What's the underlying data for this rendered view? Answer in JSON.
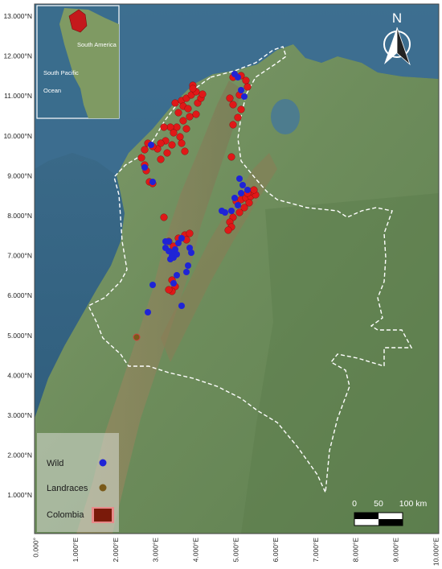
{
  "map": {
    "lat_labels": [
      "13.000°N",
      "12.000°N",
      "11.000°N",
      "10.000°N",
      "9.000°N",
      "8.000°N",
      "7.000°N",
      "6.000°N",
      "5.000°N",
      "4.000°N",
      "3.000°N",
      "2.000°N",
      "1.000°N"
    ],
    "lon_labels": [
      "0.000°",
      "1.000°E",
      "2.000°E",
      "3.000°E",
      "4.000°E",
      "5.000°E",
      "6.000°E",
      "7.000°E",
      "8.000°E",
      "9.000°E",
      "10.000°E"
    ],
    "north_label": "N",
    "inset": {
      "country": "Colombia",
      "label_continent": "South America",
      "label_ocean_line1": "South Pacific",
      "label_ocean_line2": "Ocean"
    },
    "legend": {
      "wild_label": "Wild",
      "landraces_label": "Landraces",
      "colombia_label": "Colombia"
    },
    "scale": {
      "labels": [
        "0",
        "50",
        "100 km"
      ]
    },
    "colors": {
      "wild": "#1f24d6",
      "landraces": "#e01818",
      "landraces_legend": "#7a5a1a",
      "colombia_fill": "#7a1a0a",
      "border": "#ffffff"
    }
  }
}
